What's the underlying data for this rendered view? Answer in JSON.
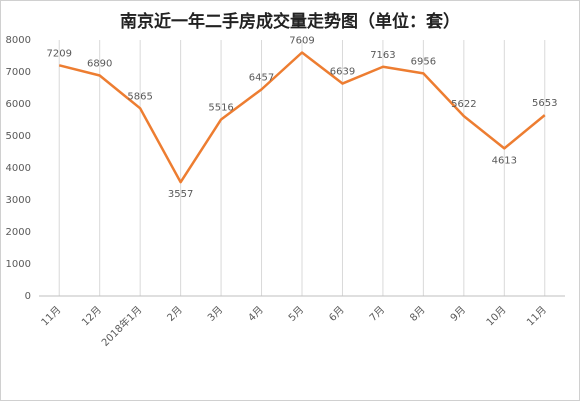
{
  "chart_data": {
    "type": "line",
    "title": "南京近一年二手房成交量走势图（单位：套）",
    "categories": [
      "11月",
      "12月",
      "2018年1月",
      "2月",
      "3月",
      "4月",
      "5月",
      "6月",
      "7月",
      "8月",
      "9月",
      "10月",
      "11月"
    ],
    "values": [
      7209,
      6890,
      5865,
      3557,
      5516,
      6457,
      7609,
      6639,
      7163,
      6956,
      5622,
      4613,
      5653
    ],
    "color": "#ed7d31",
    "ylim": [
      0,
      8000
    ],
    "yticks": [
      0,
      1000,
      2000,
      3000,
      4000,
      5000,
      6000,
      7000,
      8000
    ],
    "grid": "vertical"
  }
}
